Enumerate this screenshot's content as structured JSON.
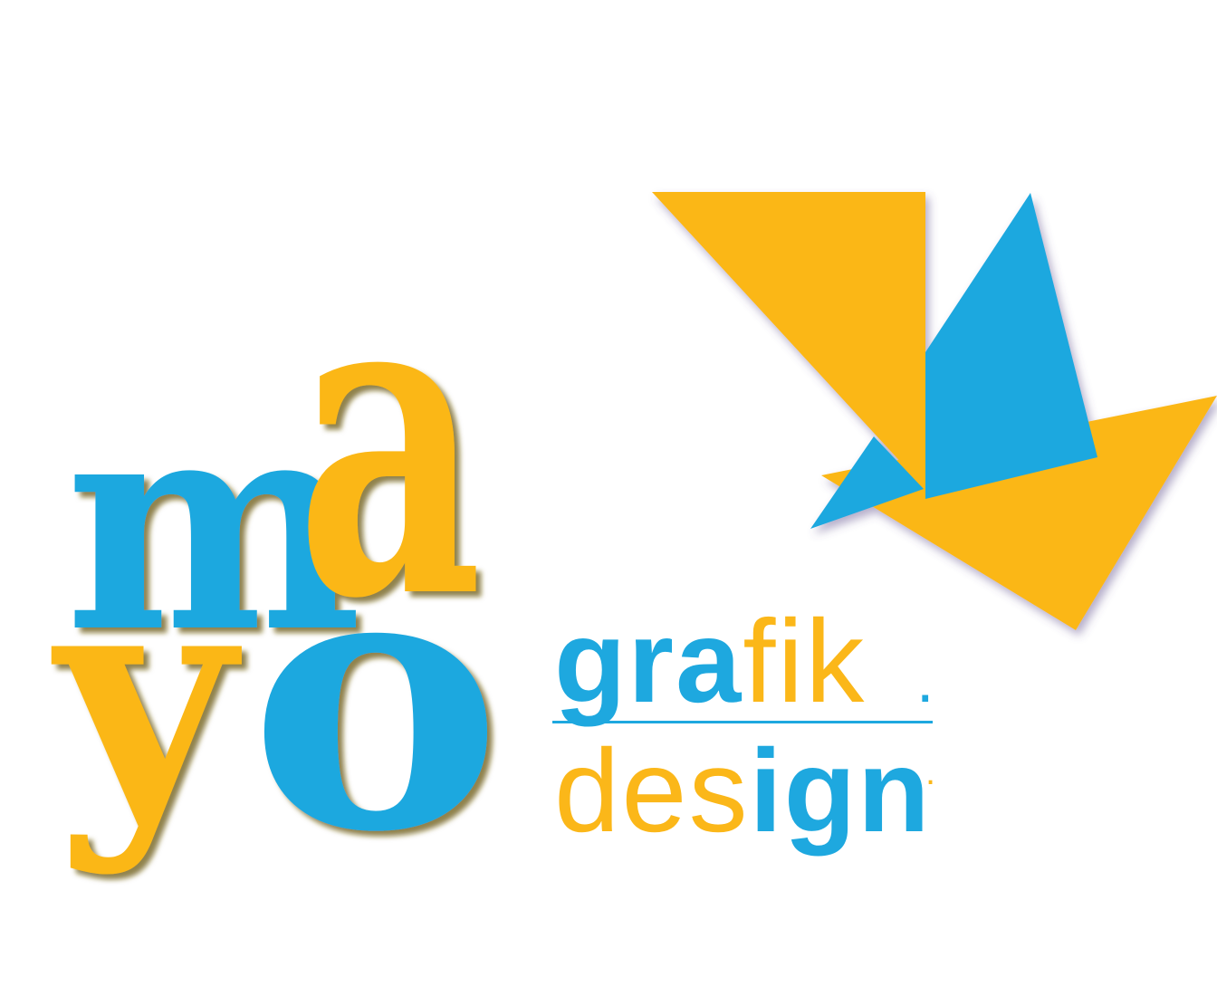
{
  "logo": {
    "monogram": {
      "m": "m",
      "a": "a",
      "y": "y",
      "o": "o"
    },
    "wordmark": {
      "line1": {
        "part1": "gra",
        "part2": "fik",
        "dot": "."
      },
      "line2": {
        "part1": "des",
        "part2": "ign",
        "dot": "."
      }
    }
  },
  "colors": {
    "blue": "#1ea8df",
    "yellow": "#fbb719",
    "shadow": "#7a6a16",
    "background": "#ffffff"
  }
}
